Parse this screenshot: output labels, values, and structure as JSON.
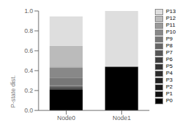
{
  "chart_data": {
    "type": "bar",
    "stacked": true,
    "ylabel": "P-state dist.",
    "categories": [
      "Node0",
      "Node1"
    ],
    "series": [
      {
        "name": "P0",
        "color": "#000000",
        "values": [
          0.21,
          0.44
        ]
      },
      {
        "name": "P1",
        "color": "#111111",
        "values": [
          0.005,
          0.0
        ]
      },
      {
        "name": "P2",
        "color": "#1a1a1a",
        "values": [
          0.005,
          0.0
        ]
      },
      {
        "name": "P3",
        "color": "#222222",
        "values": [
          0.005,
          0.0
        ]
      },
      {
        "name": "P4",
        "color": "#2b2b2b",
        "values": [
          0.005,
          0.0
        ]
      },
      {
        "name": "P5",
        "color": "#333333",
        "values": [
          0.005,
          0.0
        ]
      },
      {
        "name": "P6",
        "color": "#3d3d3d",
        "values": [
          0.005,
          0.0
        ]
      },
      {
        "name": "P7",
        "color": "#555555",
        "values": [
          0.005,
          0.0
        ]
      },
      {
        "name": "P8",
        "color": "#666666",
        "values": [
          0.005,
          0.0
        ]
      },
      {
        "name": "P9",
        "color": "#777777",
        "values": [
          0.08,
          0.0
        ]
      },
      {
        "name": "P10",
        "color": "#888888",
        "values": [
          0.1,
          0.0
        ]
      },
      {
        "name": "P11",
        "color": "#999999",
        "values": [
          0.01,
          0.0
        ]
      },
      {
        "name": "P12",
        "color": "#bbbbbb",
        "values": [
          0.21,
          0.0
        ]
      },
      {
        "name": "P13",
        "color": "#dedede",
        "values": [
          0.295,
          0.56
        ]
      }
    ],
    "ylim": [
      0,
      1
    ],
    "yticks": [
      {
        "value": 0,
        "label": "0.0"
      },
      0.2,
      0.4,
      0.6,
      0.8,
      {
        "value": 1,
        "label": "1.0"
      }
    ],
    "grid": false,
    "legend": "right"
  }
}
